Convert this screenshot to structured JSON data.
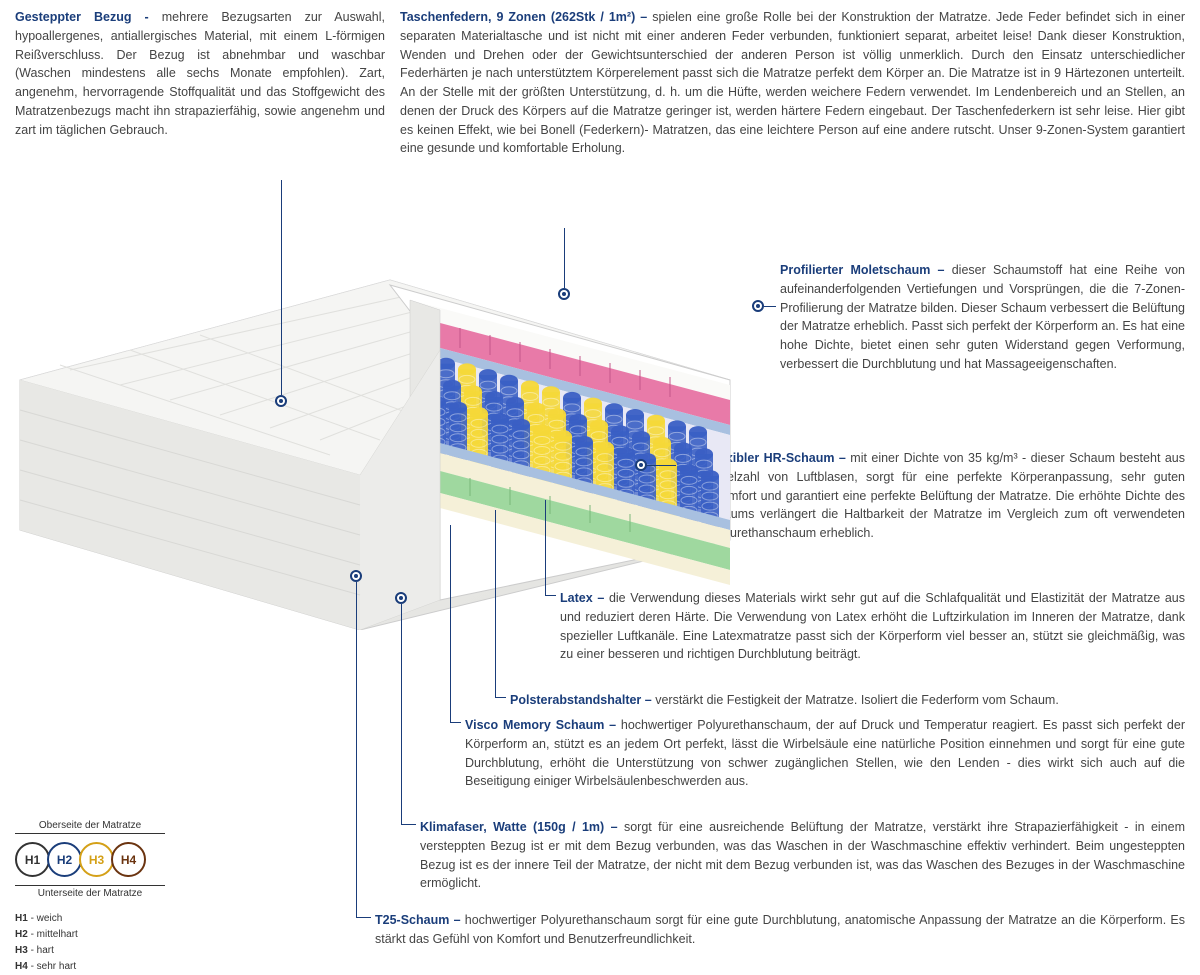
{
  "sections": {
    "cover": {
      "title": "Gesteppter Bezug - ",
      "body": "mehrere Bezugsarten zur Auswahl, hypoallergenes, antiallergisches Material, mit einem L-förmigen Reißverschluss. Der Bezug ist abnehmbar und waschbar (Waschen mindestens alle sechs Monate empfohlen). Zart, angenehm, hervorragende Stoffqualität und das Stoffgewicht des Matratzenbezugs macht ihn strapazierfähig, sowie angenehm und zart im täglichen Gebrauch."
    },
    "springs": {
      "title": "Taschenfedern, 9 Zonen (262Stk / 1m²) – ",
      "body": "spielen eine große Rolle bei der Konstruktion der Matratze. Jede Feder befindet sich in einer separaten Materialtasche und ist nicht mit einer anderen Feder verbunden, funktioniert separat, arbeitet leise! Dank dieser Konstruktion, Wenden und Drehen oder der Gewichtsunterschied der anderen Person ist völlig unmerklich. Durch den Einsatz unterschiedlicher Federhärten je nach unterstütztem Körperelement passt sich die Matratze perfekt dem Körper an. Die Matratze ist in 9 Härtezonen unterteilt. An der Stelle mit der größten Unterstützung, d. h. um die Hüfte, werden weichere Federn verwendet. Im Lendenbereich und an Stellen, an denen der Druck des Körpers auf die Matratze geringer ist, werden härtere Federn eingebaut. Der Taschenfederkern ist sehr leise. Hier gibt es keinen Effekt, wie bei Bonell (Federkern)- Matratzen, das eine leichtere Person auf eine andere rutscht. Unser 9-Zonen-System garantiert eine gesunde und komfortable Erholung."
    },
    "molet": {
      "title": "Profilierter Moletschaum – ",
      "body": "dieser Schaumstoff hat eine Reihe von aufeinanderfolgenden Vertiefungen und Vorsprüngen, die die 7-Zonen-Profilierung der Matratze bilden. Dieser Schaum verbessert die Belüftung der Matratze erheblich. Passt sich perfekt der Körperform an. Es hat eine hohe Dichte, bietet einen sehr guten Widerstand gegen Verformung, verbessert die Durchblutung und hat Massageeigenschaften."
    },
    "hr": {
      "title": "Hochflexibler HR-Schaum – ",
      "body": "mit einer Dichte von 35 kg/m³ - dieser Schaum besteht aus einer Vielzahl von Luftblasen, sorgt für eine perfekte Körperanpassung, sehr guten Schlafkomfort und garantiert eine perfekte Belüftung der Matratze. Die erhöhte Dichte des HR-Schaums verlängert die Haltbarkeit der Matratze im Vergleich zum oft verwendeten T25-Polyurethanschaum erheblich."
    },
    "latex": {
      "title": "Latex – ",
      "body": "die Verwendung dieses Materials wirkt sehr gut auf die Schlafqualität und Elastizität der Matratze aus und reduziert deren Härte. Die Verwendung von Latex erhöht die Luftzirkulation im Inneren der Matratze, dank spezieller Luftkanäle. Eine Latexmatratze passt sich der Körperform viel besser an, stützt sie gleichmäßig, was zu einer besseren und richtigen Durchblutung beiträgt."
    },
    "spacer": {
      "title": "Polsterabstandshalter – ",
      "body": "verstärkt die Festigkeit der Matratze. Isoliert die Federform vom Schaum."
    },
    "visco": {
      "title": "Visco Memory Schaum – ",
      "body": "hochwertiger Polyurethanschaum, der auf Druck und Temperatur reagiert. Es passt sich perfekt der Körperform an, stützt es an jedem Ort perfekt, lässt die Wirbelsäule eine natürliche Position einnehmen und sorgt für eine gute Durchblutung, erhöht die Unterstützung von schwer zugänglichen Stellen, wie den Lenden - dies wirkt sich auch auf die Beseitigung einiger Wirbelsäulenbeschwerden aus."
    },
    "klima": {
      "title": "Klimafaser, Watte (150g / 1m) – ",
      "body": "sorgt für eine ausreichende Belüftung der Matratze, verstärkt ihre Strapazierfähigkeit - in einem versteppten Bezug ist er mit dem Bezug verbunden, was das Waschen in der Waschmaschine effektiv verhindert. Beim ungesteppten Bezug ist es der innere Teil der Matratze, der nicht mit dem Bezug verbunden ist, was das Waschen des Bezuges in der Waschmaschine ermöglicht."
    },
    "t25": {
      "title": "T25-Schaum – ",
      "body": "hochwertiger Polyurethanschaum sorgt für eine gute Durchblutung, anatomische Anpassung der Matratze an die Körperform. Es stärkt das Gefühl von Komfort und Benutzerfreundlichkeit."
    }
  },
  "hardness": {
    "top_label": "Oberseite der Matratze",
    "bottom_label": "Unterseite der Matratze",
    "items": [
      {
        "code": "H1",
        "desc": "weich",
        "color": "#333333"
      },
      {
        "code": "H2",
        "desc": "mittelhart",
        "color": "#1a3d7a"
      },
      {
        "code": "H3",
        "desc": "hart",
        "color": "#d4a017"
      },
      {
        "code": "H4",
        "desc": "sehr hart",
        "color": "#6b3410"
      }
    ]
  },
  "mattress_colors": {
    "cover": "#f0f0ee",
    "cover_shadow": "#d8d8d5",
    "pink_foam": "#e87aa8",
    "green_foam": "#9fd89f",
    "cream_foam": "#f5f0d8",
    "blue_foam": "#a8c0e0",
    "spring_blue": "#3a5fc4",
    "spring_yellow": "#f5d838",
    "spring_bg": "#e8e8f5"
  }
}
